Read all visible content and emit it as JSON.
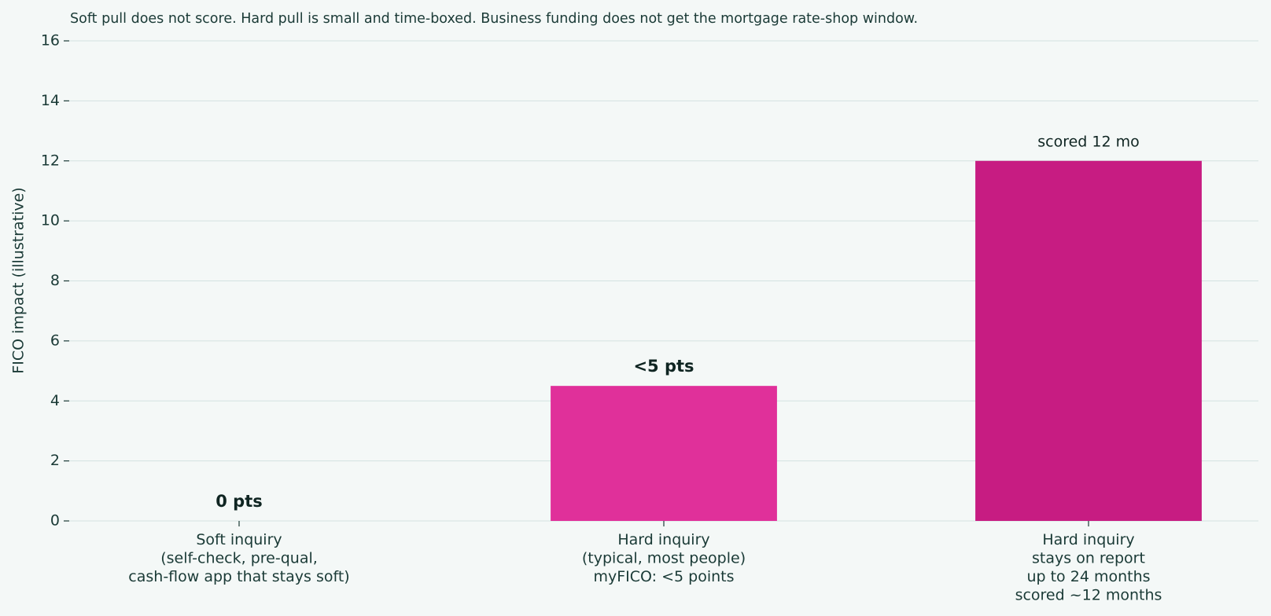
{
  "chart_data": {
    "type": "bar",
    "title": "Soft pull does not score. Hard pull is small and time-boxed. Business funding does not get the mortgage rate-shop window.",
    "y_label": "FICO impact (illustrative)",
    "categories": [
      "Soft inquiry\n(self-check, pre-qual,\ncash-flow app that stays soft)",
      "Hard inquiry\n(typical, most people)\nmyFICO: <5 points",
      "Hard inquiry\nstays on report\nup to 24 months\nscored ~12 months"
    ],
    "values": [
      0,
      4.5,
      12
    ],
    "value_labels": [
      "0 pts",
      "<5 pts",
      "scored 12 mo"
    ],
    "colors": [
      "#e0309a",
      "#e0309a",
      "#c71c82"
    ],
    "ylim": [
      0,
      16
    ],
    "yticks": [
      0,
      2,
      4,
      6,
      8,
      10,
      12,
      14,
      16
    ],
    "grid": true
  }
}
